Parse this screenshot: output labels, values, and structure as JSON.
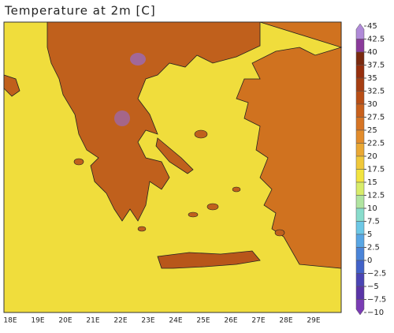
{
  "title": "Temperature at 2m [C]",
  "map": {
    "longitude_labels": [
      "18E",
      "19E",
      "20E",
      "21E",
      "22E",
      "23E",
      "24E",
      "25E",
      "26E",
      "27E",
      "28E",
      "29E"
    ]
  },
  "colorbar": {
    "ticks": [
      45,
      42.5,
      40,
      37.5,
      35,
      32.5,
      30,
      27.5,
      25,
      22.5,
      20,
      17.5,
      15,
      12.5,
      10,
      7.5,
      5,
      2.5,
      0,
      {
        "value": -2.5,
        "label": "−2.5"
      },
      {
        "value": -5,
        "label": "−5"
      },
      {
        "value": -7.5,
        "label": "−7.5"
      },
      {
        "value": -10,
        "label": "−10"
      }
    ],
    "colors": [
      "#b08ad8",
      "#8a3a9a",
      "#7a2a10",
      "#962f0e",
      "#a63e12",
      "#b84e16",
      "#c8601c",
      "#d67424",
      "#e28c2c",
      "#eaa834",
      "#f0c83a",
      "#f2e440",
      "#d8ec6a",
      "#b0e4a0",
      "#88dccc",
      "#6cc8e6",
      "#58a6e4",
      "#4a84d8",
      "#4262c8",
      "#4a44b4",
      "#5a34a6",
      "#7a3cb4"
    ]
  }
}
